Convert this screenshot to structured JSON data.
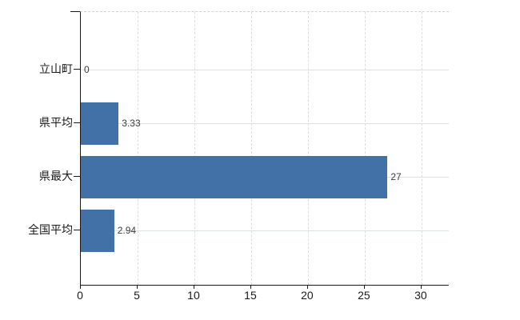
{
  "chart_data": {
    "type": "bar",
    "orientation": "horizontal",
    "title": "",
    "categories": [
      "立山町",
      "県平均",
      "県最大",
      "全国平均"
    ],
    "values": [
      0,
      3.33,
      27,
      2.94
    ],
    "value_labels": [
      "0",
      "3.33",
      "27",
      "2.94"
    ],
    "x_ticks": [
      "0",
      "5",
      "10",
      "15",
      "20",
      "25",
      "30"
    ],
    "x_tick_values": [
      0,
      5,
      10,
      15,
      20,
      25,
      30
    ],
    "xlim": [
      0,
      32.4
    ],
    "grid": true,
    "legend": "none",
    "colors": {
      "bar": "#4271a7",
      "axis": "#1a1a1a",
      "vertical_grid": "#dcdcdc",
      "horizontal_grid": "#dce2dc",
      "plot_top_border": "#d3d3d3",
      "value_label": "#3c3c3c",
      "tick_label": "#1a1a1a",
      "background": "#ffffff"
    }
  }
}
